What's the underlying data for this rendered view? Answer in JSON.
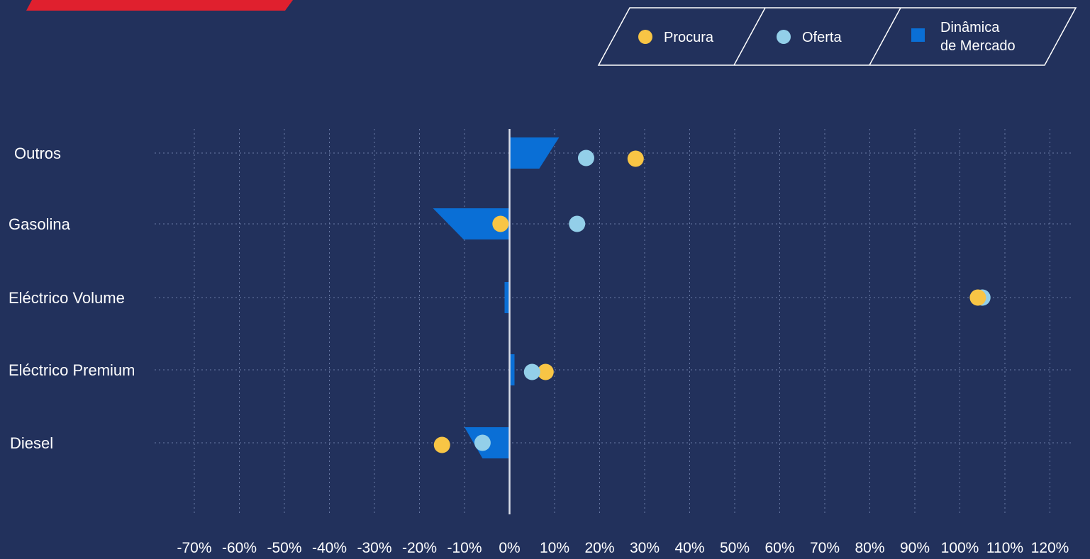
{
  "colors": {
    "background": "#22315c",
    "accent_red": "#e0202e",
    "procura": "#f8c545",
    "oferta": "#93cfe9",
    "dinamica": "#0a6fd6",
    "grid": "#6a7aa6",
    "zero_line": "#d9dde8"
  },
  "legend": {
    "procura_label": "Procura",
    "oferta_label": "Oferta",
    "dinamica_line1": "Dinâmica",
    "dinamica_line2": "de Mercado"
  },
  "chart_data": {
    "type": "scatter",
    "orientation": "horizontal",
    "categories": [
      "Outros",
      "Gasolina",
      "Eléctrico Volume",
      "Eléctrico Premium",
      "Diesel"
    ],
    "series": [
      {
        "name": "Procura",
        "values": [
          28,
          -2,
          104,
          8,
          -15
        ]
      },
      {
        "name": "Oferta",
        "values": [
          17,
          15,
          105,
          5,
          -6
        ]
      },
      {
        "name": "Dinâmica de Mercado",
        "values": [
          11,
          -17,
          -1,
          1,
          -10
        ]
      }
    ],
    "x_ticks": [
      "-70%",
      "-60%",
      "-50%",
      "-40%",
      "-30%",
      "-20%",
      "-10%",
      "0%",
      "10%",
      "20%",
      "30%",
      "40%",
      "50%",
      "60%",
      "70%",
      "80%",
      "90%",
      "100%",
      "110%",
      "120%"
    ],
    "xlim": [
      -70,
      120
    ],
    "grid": true,
    "legend_position": "top-right"
  }
}
